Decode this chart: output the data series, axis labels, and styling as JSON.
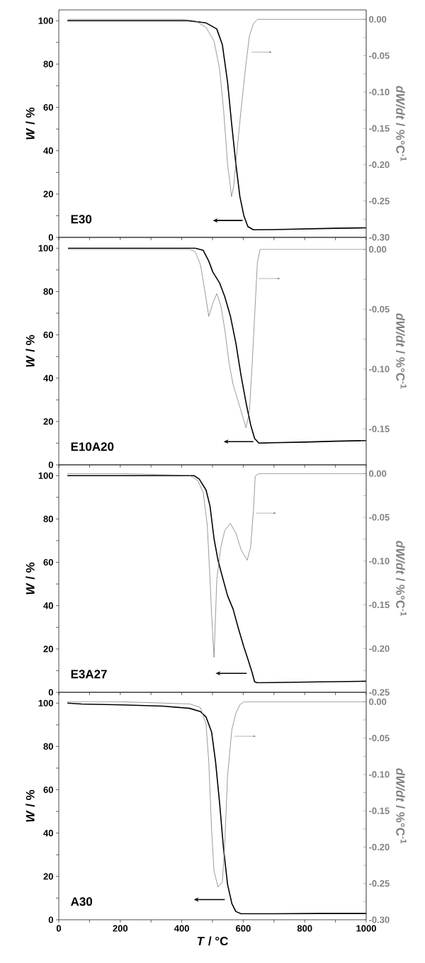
{
  "chart_data": [
    {
      "type": "line",
      "annotations": [
        "E30"
      ],
      "ylabel": "*W* / %",
      "y2label": "*dW/dt* / %°C$^{-1}$",
      "tick_labels": "y",
      "xlim": [
        0,
        1000
      ],
      "ylim": [
        0,
        105
      ],
      "y2lim": [
        -0.3,
        0.013
      ],
      "xticks": [
        0,
        {
          "value": 100,
          "label": null
        },
        200,
        {
          "value": 300,
          "label": null
        },
        400,
        {
          "value": 500,
          "label": null
        },
        600,
        {
          "value": 700,
          "label": null
        },
        800,
        {
          "value": 900,
          "label": null
        },
        1000
      ],
      "yticks": [
        0,
        {
          "value": 10,
          "label": null
        },
        20,
        {
          "value": 30,
          "label": null
        },
        40,
        {
          "value": 50,
          "label": null
        },
        60,
        {
          "value": 70,
          "label": null
        },
        80,
        {
          "value": 90,
          "label": null
        },
        100
      ],
      "y2ticks": [
        {
          "value": -0.3,
          "label": "-0.30"
        },
        {
          "value": -0.275,
          "label": null
        },
        {
          "value": -0.25,
          "label": "-0.25"
        },
        {
          "value": -0.225,
          "label": null
        },
        {
          "value": -0.2,
          "label": "-0.20"
        },
        {
          "value": -0.175,
          "label": null
        },
        {
          "value": -0.15,
          "label": "-0.15"
        },
        {
          "value": -0.125,
          "label": null
        },
        {
          "value": -0.1,
          "label": "-0.10"
        },
        {
          "value": -0.075,
          "label": null
        },
        {
          "value": -0.05,
          "label": "-0.05"
        },
        {
          "value": -0.025,
          "label": null
        },
        {
          "value": 0,
          "label": "0.00"
        }
      ],
      "series": [
        {
          "color": "#000000",
          "x": [
            28,
            200,
            420,
            479,
            514,
            532,
            549,
            562,
            576,
            589,
            602,
            615,
            633,
            700,
            800,
            900,
            1000
          ],
          "values": [
            100,
            100,
            100,
            99,
            96.2,
            89,
            71.7,
            52.8,
            34,
            18.9,
            10,
            5,
            3.5,
            3.6,
            3.9,
            4.2,
            4.4
          ]
        },
        {
          "color": "#808080",
          "axis": "y2",
          "x": [
            28,
            200,
            400,
            444,
            479,
            505,
            523,
            536,
            549,
            562,
            569,
            580,
            593,
            607,
            620,
            633,
            646,
            800,
            1000
          ],
          "values": [
            0,
            0,
            0,
            -0.002,
            -0.011,
            -0.03,
            -0.068,
            -0.124,
            -0.199,
            -0.244,
            -0.229,
            -0.18,
            -0.124,
            -0.068,
            -0.023,
            -0.006,
            0,
            0,
            0
          ]
        }
      ]
    },
    {
      "type": "line",
      "annotations": [
        "E10A20"
      ],
      "ylabel": "*W* / %",
      "y2label": "*dW/dt* / %°C$^{-1}$",
      "tick_labels": "y",
      "xlim": [
        0,
        1000
      ],
      "ylim": [
        0,
        105
      ],
      "y2lim": [
        -0.18,
        0.01
      ],
      "xticks": [
        0,
        {
          "value": 100,
          "label": null
        },
        200,
        {
          "value": 300,
          "label": null
        },
        400,
        {
          "value": 500,
          "label": null
        },
        600,
        {
          "value": 700,
          "label": null
        },
        800,
        {
          "value": 900,
          "label": null
        },
        1000
      ],
      "yticks": [
        0,
        {
          "value": 10,
          "label": null
        },
        20,
        {
          "value": 30,
          "label": null
        },
        40,
        {
          "value": 50,
          "label": null
        },
        60,
        {
          "value": 70,
          "label": null
        },
        80,
        {
          "value": 90,
          "label": null
        },
        100
      ],
      "y2ticks": [
        {
          "value": -0.15,
          "label": "-0.15"
        },
        {
          "value": -0.125,
          "label": null
        },
        {
          "value": -0.1,
          "label": "-0.10"
        },
        {
          "value": -0.075,
          "label": null
        },
        {
          "value": -0.05,
          "label": "-0.05"
        },
        {
          "value": -0.025,
          "label": null
        },
        {
          "value": 0,
          "label": "0.00"
        }
      ],
      "series": [
        {
          "color": "#000000",
          "x": [
            30,
            200,
            430,
            444,
            470,
            488,
            501,
            523,
            540,
            558,
            576,
            593,
            611,
            624,
            637,
            651,
            700,
            800,
            900,
            1000
          ],
          "values": [
            100,
            100,
            100,
            100,
            99,
            94,
            89,
            84,
            77.6,
            68.8,
            56.2,
            41.1,
            27.3,
            18.5,
            12.2,
            10,
            10.2,
            10.5,
            10.9,
            11.2
          ]
        },
        {
          "color": "#808080",
          "axis": "y2",
          "x": [
            30,
            200,
            426,
            444,
            461,
            474,
            488,
            501,
            514,
            527,
            540,
            554,
            567,
            580,
            593,
            609,
            620,
            628,
            637,
            646,
            655,
            1000
          ],
          "values": [
            0,
            0,
            0,
            -0.002,
            -0.013,
            -0.033,
            -0.056,
            -0.045,
            -0.037,
            -0.047,
            -0.067,
            -0.095,
            -0.113,
            -0.124,
            -0.135,
            -0.149,
            -0.135,
            -0.101,
            -0.056,
            -0.011,
            0,
            0
          ]
        }
      ]
    },
    {
      "type": "line",
      "annotations": [
        "E3A27"
      ],
      "ylabel": "*W* / %",
      "y2label": "*dW/dt* / %°C$^{-1}$",
      "tick_labels": "y",
      "xlim": [
        0,
        1000
      ],
      "ylim": [
        0,
        105
      ],
      "y2lim": [
        -0.25,
        0.01
      ],
      "xticks": [
        0,
        {
          "value": 100,
          "label": null
        },
        200,
        {
          "value": 300,
          "label": null
        },
        400,
        {
          "value": 500,
          "label": null
        },
        600,
        {
          "value": 700,
          "label": null
        },
        800,
        {
          "value": 900,
          "label": null
        },
        1000
      ],
      "yticks": [
        0,
        {
          "value": 10,
          "label": null
        },
        20,
        {
          "value": 30,
          "label": null
        },
        40,
        {
          "value": 50,
          "label": null
        },
        60,
        {
          "value": 70,
          "label": null
        },
        80,
        {
          "value": 90,
          "label": null
        },
        100
      ],
      "y2ticks": [
        {
          "value": -0.25,
          "label": "-0.25"
        },
        {
          "value": -0.225,
          "label": null
        },
        {
          "value": -0.2,
          "label": "-0.20"
        },
        {
          "value": -0.175,
          "label": null
        },
        {
          "value": -0.15,
          "label": "-0.15"
        },
        {
          "value": -0.125,
          "label": null
        },
        {
          "value": -0.1,
          "label": "-0.10"
        },
        {
          "value": -0.075,
          "label": null
        },
        {
          "value": -0.05,
          "label": "-0.05"
        },
        {
          "value": -0.025,
          "label": null
        },
        {
          "value": 0,
          "label": "0.00"
        }
      ],
      "series": [
        {
          "color": "#000000",
          "x": [
            28,
            200,
            440,
            457,
            479,
            492,
            505,
            518,
            532,
            549,
            567,
            584,
            602,
            615,
            629,
            637,
            646,
            700,
            850,
            1000
          ],
          "values": [
            100,
            100,
            100,
            98.4,
            93.4,
            85.9,
            70.9,
            60.9,
            53.4,
            44.6,
            38.4,
            29.6,
            20.9,
            15.4,
            9.1,
            4.8,
            4.4,
            4.5,
            4.8,
            5.1
          ]
        },
        {
          "color": "#808080",
          "axis": "y2",
          "x": [
            28,
            200,
            426,
            452,
            470,
            483,
            492,
            497,
            505,
            514,
            527,
            540,
            558,
            576,
            593,
            613,
            624,
            633,
            639,
            650,
            800,
            1000
          ],
          "values": [
            0,
            0,
            -0.002,
            -0.008,
            -0.022,
            -0.059,
            -0.121,
            -0.16,
            -0.21,
            -0.121,
            -0.084,
            -0.065,
            -0.057,
            -0.068,
            -0.087,
            -0.099,
            -0.084,
            -0.043,
            -0.003,
            0,
            0,
            0
          ]
        }
      ]
    },
    {
      "type": "line",
      "annotations": [
        "A30"
      ],
      "xlabel": "*T* / °C",
      "ylabel": "*W* / %",
      "y2label": "*dW/dt* / %°C$^{-1}$",
      "xlim": [
        0,
        1000
      ],
      "ylim": [
        0,
        105
      ],
      "y2lim": [
        -0.3,
        0.013
      ],
      "xticks": [
        0,
        {
          "value": 100,
          "label": null
        },
        200,
        {
          "value": 300,
          "label": null
        },
        400,
        {
          "value": 500,
          "label": null
        },
        600,
        {
          "value": 700,
          "label": null
        },
        800,
        {
          "value": 900,
          "label": null
        },
        1000
      ],
      "yticks": [
        0,
        {
          "value": 10,
          "label": null
        },
        20,
        {
          "value": 30,
          "label": null
        },
        40,
        {
          "value": 50,
          "label": null
        },
        60,
        {
          "value": 70,
          "label": null
        },
        80,
        {
          "value": 90,
          "label": null
        },
        100
      ],
      "y2ticks": [
        {
          "value": -0.3,
          "label": "-0.30"
        },
        {
          "value": -0.275,
          "label": null
        },
        {
          "value": -0.25,
          "label": "-0.25"
        },
        {
          "value": -0.225,
          "label": null
        },
        {
          "value": -0.2,
          "label": "-0.20"
        },
        {
          "value": -0.175,
          "label": null
        },
        {
          "value": -0.15,
          "label": "-0.15"
        },
        {
          "value": -0.125,
          "label": null
        },
        {
          "value": -0.1,
          "label": "-0.10"
        },
        {
          "value": -0.075,
          "label": null
        },
        {
          "value": -0.05,
          "label": "-0.05"
        },
        {
          "value": -0.025,
          "label": null
        },
        {
          "value": 0,
          "label": "0.00"
        }
      ],
      "series": [
        {
          "color": "#000000",
          "x": [
            28,
            74,
            206,
            338,
            426,
            461,
            479,
            497,
            510,
            523,
            536,
            549,
            563,
            576,
            593,
            700,
            850,
            1000
          ],
          "values": [
            100,
            99.6,
            99.2,
            98.6,
            97.6,
            96.1,
            93.6,
            86.7,
            72.9,
            54,
            32.7,
            16.3,
            7.5,
            3.8,
            2.8,
            2.8,
            2.9,
            2.9
          ]
        },
        {
          "color": "#808080",
          "axis": "y2",
          "x": [
            28,
            200,
            426,
            461,
            479,
            488,
            497,
            505,
            518,
            532,
            540,
            549,
            563,
            576,
            589,
            602,
            800,
            1000
          ],
          "values": [
            0,
            0,
            -0.003,
            -0.008,
            -0.031,
            -0.083,
            -0.176,
            -0.233,
            -0.255,
            -0.248,
            -0.195,
            -0.102,
            -0.038,
            -0.016,
            -0.004,
            0,
            0,
            0
          ]
        }
      ]
    }
  ]
}
